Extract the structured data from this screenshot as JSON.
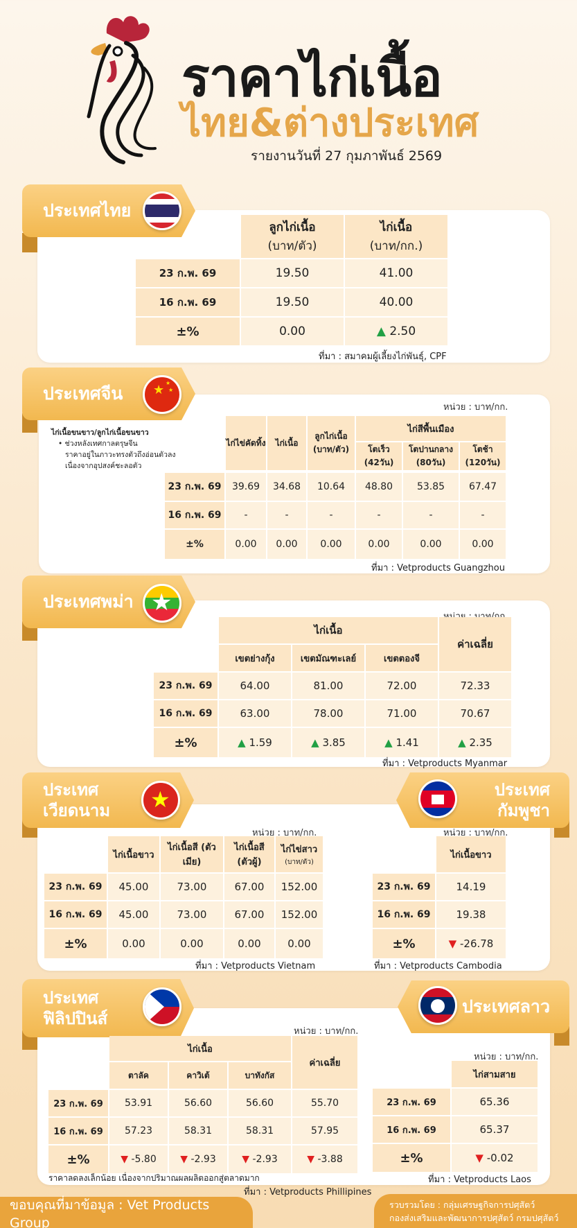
{
  "header": {
    "title_main": "ราคาไก่เนื้อ",
    "title_sub": "ไทย&ต่างประเทศ",
    "report_date": "รายงานวันที่ 27 กุมภาพันธ์ 2569"
  },
  "thailand": {
    "tab": "ประเทศไทย",
    "columns": [
      "ลูกไก่เนื้อ",
      "ไก่เนื้อ"
    ],
    "column_units": [
      "(บาท/ตัว)",
      "(บาท/กก.)"
    ],
    "rows": [
      {
        "label": "23 ก.พ. 69",
        "values": [
          "19.50",
          "41.00"
        ]
      },
      {
        "label": "16 ก.พ. 69",
        "values": [
          "19.50",
          "40.00"
        ]
      },
      {
        "label": "±%",
        "values": [
          "0.00",
          "2.50"
        ]
      }
    ],
    "source": "ที่มา : สมาคมผู้เลี้ยงไก่พันธุ์, CPF"
  },
  "china": {
    "tab": "ประเทศจีน",
    "unit": "หน่วย : บาท/กก.",
    "note_title": "ไก่เนื้อขนขาว/ลูกไก่เนื้อขนขาว",
    "note_lines": [
      "ช่วงหลังเทศกาลตรุษจีน",
      "ราคาอยู่ในภาวะทรงตัวถึงอ่อนตัวลง",
      "เนื่องจากอุปสงค์ชะลอตัว"
    ],
    "col1": "ไก่ไข่คัดทิ้ง",
    "col2": "ไก่เนื้อ",
    "col3": "ลูกไก่เนื้อ (บาท/ตัว)",
    "group": "ไก่สีพื้นเมือง",
    "sub1": "โตเร็ว (42วัน)",
    "sub2": "โตปานกลาง (80วัน)",
    "sub3": "โตช้า (120วัน)",
    "rows": [
      {
        "label": "23 ก.พ. 69",
        "values": [
          "39.69",
          "34.68",
          "10.64",
          "48.80",
          "53.85",
          "67.47"
        ]
      },
      {
        "label": "16 ก.พ. 69",
        "values": [
          "-",
          "-",
          "-",
          "-",
          "-",
          "-"
        ]
      },
      {
        "label": "±%",
        "values": [
          "0.00",
          "0.00",
          "0.00",
          "0.00",
          "0.00",
          "0.00"
        ]
      }
    ],
    "source": "ที่มา : Vetproducts Guangzhou"
  },
  "myanmar": {
    "tab": "ประเทศพม่า",
    "unit": "หน่วย : บาท/กก.",
    "group": "ไก่เนื้อ",
    "avg": "ค่าเฉลี่ย",
    "sub": [
      "เขตย่างกุ้ง",
      "เขตมัณฑะเลย์",
      "เขตตองจี"
    ],
    "rows": [
      {
        "label": "23 ก.พ. 69",
        "values": [
          "64.00",
          "81.00",
          "72.00",
          "72.33"
        ]
      },
      {
        "label": "16 ก.พ. 69",
        "values": [
          "63.00",
          "78.00",
          "71.00",
          "70.67"
        ]
      },
      {
        "label": "±%",
        "values": [
          "1.59",
          "3.85",
          "1.41",
          "2.35"
        ]
      }
    ],
    "source": "ที่มา : Vetproducts Myanmar"
  },
  "vietnam": {
    "tab_line1": "ประเทศ",
    "tab_line2": "เวียดนาม",
    "unit": "หน่วย : บาท/กก.",
    "columns": [
      "ไก่เนื้อขาว",
      "ไก่เนื้อสี (ตัวเมีย)",
      "ไก่เนื้อสี (ตัวผู้)",
      "ไก่ไข่สาว"
    ],
    "col4_unit": "(บาท/ตัว)",
    "rows": [
      {
        "label": "23 ก.พ. 69",
        "values": [
          "45.00",
          "73.00",
          "67.00",
          "152.00"
        ]
      },
      {
        "label": "16 ก.พ. 69",
        "values": [
          "45.00",
          "73.00",
          "67.00",
          "152.00"
        ]
      },
      {
        "label": "±%",
        "values": [
          "0.00",
          "0.00",
          "0.00",
          "0.00"
        ]
      }
    ],
    "source": "ที่มา : Vetproducts Vietnam"
  },
  "cambodia": {
    "tab_line1": "ประเทศ",
    "tab_line2": "กัมพูชา",
    "unit": "หน่วย : บาท/กก.",
    "column": "ไก่เนื้อขาว",
    "rows": [
      {
        "label": "23 ก.พ. 69",
        "value": "14.19"
      },
      {
        "label": "16 ก.พ. 69",
        "value": "19.38"
      },
      {
        "label": "±%",
        "value": "-26.78"
      }
    ],
    "source": "ที่มา : Vetproducts Cambodia"
  },
  "philippines": {
    "tab_line1": "ประเทศ",
    "tab_line2": "ฟิลิปปินส์",
    "unit": "หน่วย : บาท/กก.",
    "group": "ไก่เนื้อ",
    "avg": "ค่าเฉลี่ย",
    "sub": [
      "ตาลัค",
      "คาวิเต้",
      "บาทังกัส"
    ],
    "rows": [
      {
        "label": "23 ก.พ. 69",
        "values": [
          "53.91",
          "56.60",
          "56.60",
          "55.70"
        ]
      },
      {
        "label": "16 ก.พ. 69",
        "values": [
          "57.23",
          "58.31",
          "58.31",
          "57.95"
        ]
      },
      {
        "label": "±%",
        "values": [
          "-5.80",
          "-2.93",
          "-2.93",
          "-3.88"
        ]
      }
    ],
    "note": "ราคาลดลงเล็กน้อย เนื่องจากปริมาณผลผลิตออกสู่ตลาดมาก",
    "source": "ที่มา : Vetproducts Phillipines"
  },
  "laos": {
    "tab": "ประเทศลาว",
    "unit": "หน่วย : บาท/กก.",
    "column": "ไก่สามสาย",
    "rows": [
      {
        "label": "23 ก.พ. 69",
        "value": "65.36"
      },
      {
        "label": "16 ก.พ. 69",
        "value": "65.37"
      },
      {
        "label": "±%",
        "value": "-0.02"
      }
    ],
    "source": "ที่มา : Vetproducts Laos"
  },
  "footer": {
    "thanks": "ขอบคุณที่มาข้อมูล :  Vet Products Group",
    "compiled_line1": "รวบรวมโดย : กลุ่มเศรษฐกิจการปศุสัตว์",
    "compiled_line2": "กองส่งเสริมและพัฒนาการปศุสัตว์ กรมปศุสัตว์"
  },
  "colors": {
    "accent": "#e9a43c",
    "header_cell": "#fce6c6",
    "body_cell": "#fdf1de",
    "up": "#22a045",
    "down": "#e02020",
    "title_sub": "#e5a64a"
  }
}
